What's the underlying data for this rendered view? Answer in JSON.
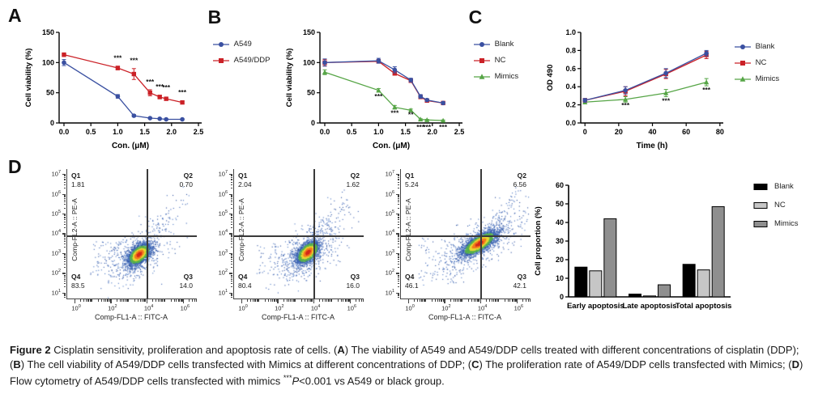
{
  "panels": {
    "a": "A",
    "b": "B",
    "c": "C",
    "d": "D"
  },
  "legends": {
    "legend_a": [
      {
        "label": "A549",
        "color": "#3a50a1",
        "marker": "circle"
      },
      {
        "label": "A549/DDP",
        "color": "#cb2127",
        "marker": "square"
      }
    ],
    "legend_b": [
      {
        "label": "Blank",
        "color": "#3a50a1",
        "marker": "circle"
      },
      {
        "label": "NC",
        "color": "#cb2127",
        "marker": "square"
      },
      {
        "label": "Mimics",
        "color": "#56a546",
        "marker": "triangle"
      }
    ],
    "legend_c": [
      {
        "label": "Blank",
        "color": "#3a50a1",
        "marker": "circle"
      },
      {
        "label": "NC",
        "color": "#cb2127",
        "marker": "square"
      },
      {
        "label": "Mimics",
        "color": "#56a546",
        "marker": "triangle"
      }
    ],
    "bar_legend": [
      {
        "label": "Blank",
        "color": "#000000",
        "marker": "bar"
      },
      {
        "label": "NC",
        "color": "#c6c6c6",
        "marker": "bar"
      },
      {
        "label": "Mimics",
        "color": "#8f8f8f",
        "marker": "bar"
      }
    ]
  },
  "chart_data": [
    {
      "type": "line",
      "mount": "chart-a",
      "title": "",
      "xlabel": "Con. (μM)",
      "ylabel": "Cell viability (%)",
      "xlim": [
        -0.09,
        2.56
      ],
      "ylim": [
        0,
        150
      ],
      "xticks": [
        {
          "v": 0,
          "l": "0.0"
        },
        {
          "v": 0.5,
          "l": "0.5"
        },
        {
          "v": 1,
          "l": "1.0"
        },
        {
          "v": 1.5,
          "l": "1.5"
        },
        {
          "v": 2,
          "l": "2.0"
        },
        {
          "v": 2.5,
          "l": "2.5"
        }
      ],
      "yticks": [
        {
          "v": 0,
          "l": "0"
        },
        {
          "v": 50,
          "l": "50"
        },
        {
          "v": 100,
          "l": "100"
        },
        {
          "v": 150,
          "l": "150"
        }
      ],
      "x": [
        0,
        1.0,
        1.3,
        1.6,
        1.78,
        1.9,
        2.2
      ],
      "series": [
        {
          "name": "A549",
          "color": "#3a50a1",
          "marker": "circle",
          "values": [
            100,
            44,
            12,
            8,
            7,
            6,
            6
          ],
          "err": [
            5,
            3,
            2,
            1,
            1,
            1,
            1
          ]
        },
        {
          "name": "A549/DDP",
          "color": "#cb2127",
          "marker": "square",
          "values": [
            113,
            91,
            81,
            50,
            43,
            40,
            34
          ],
          "err": [
            3,
            3,
            9,
            5,
            3,
            2,
            2
          ]
        }
      ],
      "annotations": [
        {
          "x": 1,
          "y": 104,
          "t": "***"
        },
        {
          "x": 1.3,
          "y": 100,
          "t": "***"
        },
        {
          "x": 1.6,
          "y": 64,
          "t": "***"
        },
        {
          "x": 1.78,
          "y": 56,
          "t": "***"
        },
        {
          "x": 1.9,
          "y": 55,
          "t": "***"
        },
        {
          "x": 2.2,
          "y": 47,
          "t": "***"
        }
      ]
    },
    {
      "type": "line",
      "mount": "chart-b",
      "title": "",
      "xlabel": "Con. (μM)",
      "ylabel": "Cell viability (%)",
      "xlim": [
        -0.09,
        2.56
      ],
      "ylim": [
        0,
        150
      ],
      "xticks": [
        {
          "v": 0,
          "l": "0.0"
        },
        {
          "v": 0.5,
          "l": "0.5"
        },
        {
          "v": 1,
          "l": "1.0"
        },
        {
          "v": 1.5,
          "l": "1.5"
        },
        {
          "v": 2,
          "l": "2.0"
        },
        {
          "v": 2.5,
          "l": "2.5"
        }
      ],
      "yticks": [
        {
          "v": 0,
          "l": "0"
        },
        {
          "v": 50,
          "l": "50"
        },
        {
          "v": 100,
          "l": "100"
        },
        {
          "v": 150,
          "l": "150"
        }
      ],
      "x": [
        0,
        1.0,
        1.3,
        1.6,
        1.78,
        1.9,
        2.2
      ],
      "series": [
        {
          "name": "Blank",
          "color": "#3a50a1",
          "marker": "circle",
          "values": [
            100,
            103,
            88,
            71,
            44,
            38,
            33
          ],
          "err": [
            6,
            4,
            5,
            3,
            3,
            2,
            2
          ]
        },
        {
          "name": "NC",
          "color": "#cb2127",
          "marker": "square",
          "values": [
            100,
            102,
            82,
            70,
            43,
            37,
            33
          ],
          "err": [
            5,
            3,
            3,
            3,
            2,
            2,
            2
          ]
        },
        {
          "name": "Mimics",
          "color": "#56a546",
          "marker": "triangle",
          "values": [
            84,
            54,
            26,
            21,
            6,
            5,
            4
          ],
          "err": [
            4,
            3,
            3,
            2,
            1,
            1,
            1
          ]
        }
      ],
      "annotations": [
        {
          "x": 1,
          "y": 40,
          "t": "***"
        },
        {
          "x": 1.3,
          "y": 13,
          "t": "***"
        },
        {
          "x": 1.6,
          "y": 10,
          "t": "**"
        },
        {
          "x": 1.78,
          "y": -11,
          "t": "***"
        },
        {
          "x": 1.9,
          "y": -11,
          "t": "***"
        },
        {
          "x": 2.2,
          "y": -11,
          "t": "***"
        }
      ]
    },
    {
      "type": "line",
      "mount": "chart-c",
      "title": "",
      "xlabel": "Time (h)",
      "ylabel": "OD 490",
      "xlim": [
        -2.5,
        82
      ],
      "ylim": [
        0,
        1.0
      ],
      "xticks": [
        {
          "v": 0,
          "l": "0"
        },
        {
          "v": 20,
          "l": "20"
        },
        {
          "v": 40,
          "l": "40"
        },
        {
          "v": 60,
          "l": "60"
        },
        {
          "v": 80,
          "l": "80"
        }
      ],
      "yticks": [
        {
          "v": 0,
          "l": "0.0"
        },
        {
          "v": 0.2,
          "l": "0.2"
        },
        {
          "v": 0.4,
          "l": "0.4"
        },
        {
          "v": 0.6,
          "l": "0.6"
        },
        {
          "v": 0.8,
          "l": "0.8"
        },
        {
          "v": 1.0,
          "l": "1.0"
        }
      ],
      "x": [
        0,
        24,
        48,
        72
      ],
      "series": [
        {
          "name": "Blank",
          "color": "#3a50a1",
          "marker": "circle",
          "values": [
            0.25,
            0.36,
            0.55,
            0.77
          ],
          "err": [
            0.02,
            0.04,
            0.05,
            0.03
          ]
        },
        {
          "name": "NC",
          "color": "#cb2127",
          "marker": "square",
          "values": [
            0.25,
            0.35,
            0.54,
            0.75
          ],
          "err": [
            0.02,
            0.05,
            0.05,
            0.04
          ]
        },
        {
          "name": "Mimics",
          "color": "#56a546",
          "marker": "triangle",
          "values": [
            0.23,
            0.26,
            0.33,
            0.45
          ],
          "err": [
            0.02,
            0.03,
            0.04,
            0.04
          ]
        }
      ],
      "annotations": [
        {
          "x": 24,
          "y": 0.17,
          "t": "***"
        },
        {
          "x": 48,
          "y": 0.22,
          "t": "***"
        },
        {
          "x": 72,
          "y": 0.34,
          "t": "***"
        }
      ]
    },
    {
      "type": "bar",
      "mount": "bar-chart",
      "title": "",
      "xlabel": "",
      "ylabel": "Cell proportion (%)",
      "ylim": [
        0,
        60
      ],
      "yticks": [
        {
          "v": 0,
          "l": "0"
        },
        {
          "v": 10,
          "l": "10"
        },
        {
          "v": 20,
          "l": "20"
        },
        {
          "v": 30,
          "l": "30"
        },
        {
          "v": 40,
          "l": "40"
        },
        {
          "v": 50,
          "l": "50"
        },
        {
          "v": 60,
          "l": "60"
        }
      ],
      "categories": [
        "Early apoptosis",
        "Late apoptosis",
        "Total apoptosis"
      ],
      "series": [
        {
          "name": "Blank",
          "color": "#000000",
          "values": [
            16,
            1.5,
            17.5
          ]
        },
        {
          "name": "NC",
          "color": "#c6c6c6",
          "values": [
            14,
            0.5,
            14.5
          ]
        },
        {
          "name": "Mimics",
          "color": "#8f8f8f",
          "values": [
            42,
            6.5,
            48.5
          ]
        }
      ]
    },
    {
      "type": "scatter",
      "mount": "flow-0",
      "name": "flow-blank",
      "xlabel": "Comp-FL1-A :: FITC-A",
      "ylabel": "Comp-FL2-A :: PE-A",
      "xlog": [
        -0.45,
        6.7
      ],
      "ylog": [
        0.7,
        7.25
      ],
      "xmajor": [
        0,
        2,
        4,
        6
      ],
      "ymajor": [
        1,
        2,
        3,
        4,
        5,
        6,
        7
      ],
      "quad": {
        "x": 3.95,
        "y": 3.88
      },
      "quadrants": {
        "q1": {
          "label": "Q1",
          "value": "1.81"
        },
        "q2": {
          "label": "Q2",
          "value": "0.70"
        },
        "q3": {
          "label": "Q3",
          "value": "14.0"
        },
        "q4": {
          "label": "Q4",
          "value": "83.5"
        }
      },
      "seed": 7,
      "main": {
        "cx": 3.5,
        "cy": 2.95,
        "sx": 0.3,
        "sy": 0.26,
        "rho": 0.5,
        "n": 2600
      },
      "halo": {
        "scale": 2.7,
        "n": 520
      },
      "trail": {
        "x0": 4.2,
        "y0": 4.15,
        "x1": 5.9,
        "y1": 5.7,
        "jit": 0.33,
        "n": 55
      },
      "noise": {
        "n": 90,
        "x0": 0.8,
        "x1": 3.2,
        "y0": 1.9,
        "y1": 3.6
      }
    },
    {
      "type": "scatter",
      "mount": "flow-1",
      "name": "flow-nc",
      "xlabel": "Comp-FL1-A :: FITC-A",
      "ylabel": "Comp-FL2-A :: PE-A",
      "xlog": [
        -0.45,
        6.7
      ],
      "ylog": [
        0.7,
        7.25
      ],
      "xmajor": [
        0,
        2,
        4,
        6
      ],
      "ymajor": [
        1,
        2,
        3,
        4,
        5,
        6,
        7
      ],
      "quad": {
        "x": 3.95,
        "y": 3.88
      },
      "quadrants": {
        "q1": {
          "label": "Q1",
          "value": "2.04"
        },
        "q2": {
          "label": "Q2",
          "value": "1.62"
        },
        "q3": {
          "label": "Q3",
          "value": "16.0"
        },
        "q4": {
          "label": "Q4",
          "value": "80.4"
        }
      },
      "seed": 11,
      "main": {
        "cx": 3.6,
        "cy": 3.05,
        "sx": 0.3,
        "sy": 0.27,
        "rho": 0.5,
        "n": 2600
      },
      "halo": {
        "scale": 2.7,
        "n": 560
      },
      "trail": {
        "x0": 4.15,
        "y0": 4.2,
        "x1": 5.6,
        "y1": 5.6,
        "jit": 0.38,
        "n": 65
      },
      "noise": {
        "n": 85,
        "x0": 0.8,
        "x1": 3.2,
        "y0": 1.9,
        "y1": 3.6
      }
    },
    {
      "type": "scatter",
      "mount": "flow-2",
      "name": "flow-mimics",
      "xlabel": "Comp-FL1-A :: FITC-A",
      "ylabel": "Comp-FL2-A :: PE-A",
      "xlog": [
        -0.45,
        6.7
      ],
      "ylog": [
        0.7,
        7.25
      ],
      "xmajor": [
        0,
        2,
        4,
        6
      ],
      "ymajor": [
        1,
        2,
        3,
        4,
        5,
        6,
        7
      ],
      "quad": {
        "x": 3.95,
        "y": 3.88
      },
      "quadrants": {
        "q1": {
          "label": "Q1",
          "value": "5.24"
        },
        "q2": {
          "label": "Q2",
          "value": "6.56"
        },
        "q3": {
          "label": "Q3",
          "value": "42.1"
        },
        "q4": {
          "label": "Q4",
          "value": "46.1"
        }
      },
      "seed": 23,
      "main": {
        "cx": 3.85,
        "cy": 3.5,
        "sx": 0.45,
        "sy": 0.3,
        "rho": 0.72,
        "n": 3200
      },
      "halo": {
        "scale": 2.5,
        "n": 600
      },
      "trail": {
        "x0": 4.6,
        "y0": 4.5,
        "x1": 6.15,
        "y1": 6.0,
        "jit": 0.3,
        "n": 60
      },
      "noise": {
        "n": 80,
        "x0": 0.5,
        "x1": 3.0,
        "y0": 1.5,
        "y1": 3.8
      }
    }
  ],
  "caption": {
    "segments": [
      {
        "t": "Figure 2",
        "b": true
      },
      {
        "t": " Cisplatin sensitivity, proliferation and apoptosis rate of cells. ("
      },
      {
        "t": "A",
        "b": true
      },
      {
        "t": ") The viability of A549 and A549/DDP cells treated with different concentrations of cisplatin (DDP); ("
      },
      {
        "t": "B",
        "b": true
      },
      {
        "t": ") The cell viability of A549/DDP cells transfected with Mimics at different concentrations of DDP; ("
      },
      {
        "t": "C",
        "b": true
      },
      {
        "t": ") The proliferation rate of A549/DDP cells transfected with Mimics; ("
      },
      {
        "t": "D",
        "b": true
      },
      {
        "t": ") Flow cytometry of A549/DDP cells transfected with mimics "
      },
      {
        "t": "***",
        "sup": true
      },
      {
        "t": "P",
        "i": true
      },
      {
        "t": "<0.001 vs A549 or black group."
      }
    ]
  }
}
